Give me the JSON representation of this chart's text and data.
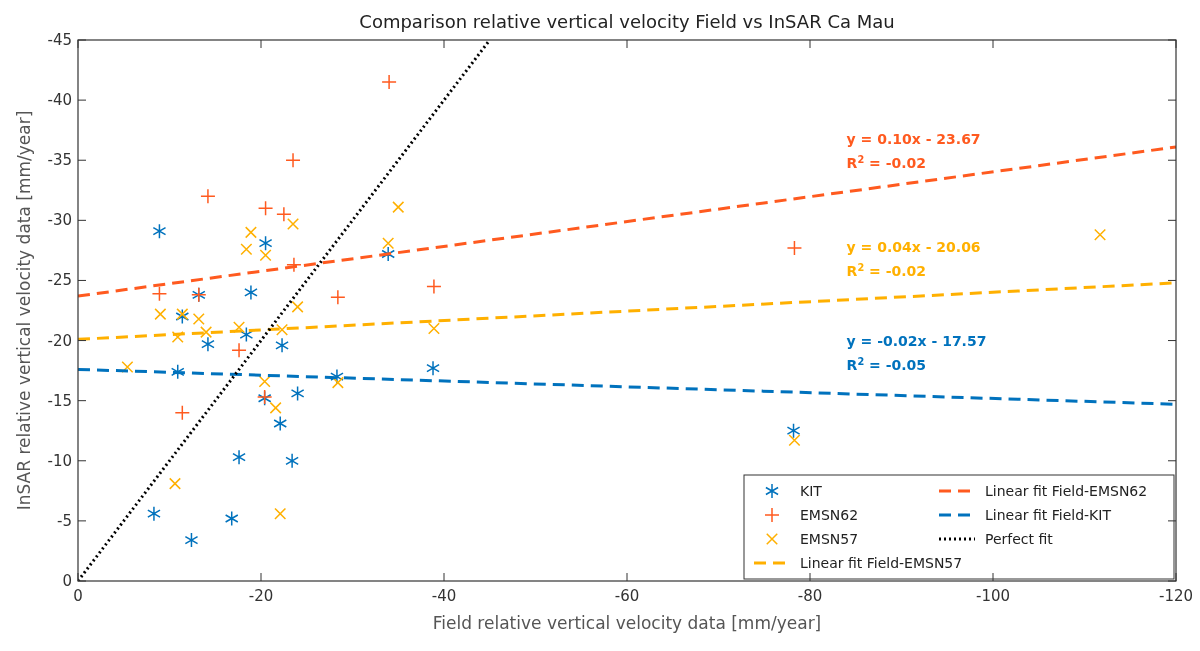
{
  "chart_data": {
    "type": "scatter",
    "title": "Comparison relative vertical velocity Field vs InSAR Ca Mau",
    "xlabel": "Field relative vertical velocity data [mm/year]",
    "ylabel": "InSAR relative vertical velocity data [mm/year]",
    "xlim": [
      0,
      -120
    ],
    "xticks": [
      0,
      -20,
      -40,
      -60,
      -80,
      -100,
      -120
    ],
    "ylim": [
      0,
      -45
    ],
    "yticks": [
      0,
      -5,
      -10,
      -15,
      -20,
      -25,
      -30,
      -35,
      -40,
      -45
    ],
    "grid": false,
    "legend": "bottom right",
    "series": [
      {
        "name": "KIT",
        "color": "#0072bd",
        "x": [
          -11.4,
          -14.2,
          -18.4,
          -22.3,
          -10.9,
          -28.3,
          -38.8,
          -20.4,
          -24,
          -22.1,
          -17.6,
          -23.4,
          -8.3,
          -16.8,
          -12.4,
          -8.9,
          -20.5,
          -33.9,
          -18.9,
          -13.2,
          -78.2
        ],
        "values": [
          -22.0,
          -19.7,
          -20.5,
          -19.6,
          -17.4,
          -17.0,
          -17.7,
          -15.2,
          -15.6,
          -13.1,
          -10.3,
          -10.0,
          -5.6,
          -5.2,
          -3.4,
          -29.1,
          -28.1,
          -27.2,
          -24.0,
          -23.8,
          -12.5
        ]
      },
      {
        "name": "EMSN62",
        "color": "#ff5a1f",
        "marker": "cross",
        "x": [
          -34.0,
          -23.5,
          -14.2,
          -20.5,
          -22.5,
          -23.6,
          -8.9,
          -13.2,
          -28.4,
          -38.9,
          -78.3,
          -17.6,
          -20.4,
          -11.4
        ],
        "values": [
          -41.5,
          -35.0,
          -32.0,
          -31.0,
          -30.5,
          -26.3,
          -23.9,
          -23.8,
          -23.6,
          -24.5,
          -27.7,
          -19.2,
          -15.3,
          -14.0
        ]
      },
      {
        "name": "EMSN57",
        "color": "#ffb000",
        "marker": "x",
        "x": [
          -35,
          -23.5,
          -18.9,
          -33.9,
          -18.4,
          -20.5,
          -9.0,
          -13.2,
          -11.4,
          -24.0,
          -10.9,
          -14.0,
          -17.6,
          -22.3,
          -38.9,
          -5.4,
          -20.4,
          -28.4,
          -21.6,
          -10.6,
          -22.1,
          -78.3,
          -111.7
        ],
        "values": [
          -31.1,
          -29.7,
          -29.0,
          -28.1,
          -27.6,
          -27.1,
          -22.2,
          -21.8,
          -22.2,
          -22.8,
          -20.3,
          -20.7,
          -21.1,
          -20.9,
          -21.0,
          -17.8,
          -16.6,
          -16.5,
          -14.4,
          -8.1,
          -5.6,
          -11.7,
          -28.8
        ]
      },
      {
        "name": "Linear fit Field-EMSN57",
        "type": "line",
        "color": "#ffb000",
        "line_style": "dashed",
        "marker": "none",
        "x": [
          0,
          -120
        ],
        "values": [
          -20.1,
          -24.8
        ]
      },
      {
        "name": "Linear fit Field-EMSN62",
        "type": "line",
        "color": "#ff5a1f",
        "line_style": "dashed",
        "marker": "none",
        "x": [
          0,
          -120
        ],
        "values": [
          -23.7,
          -36.1
        ]
      },
      {
        "name": "Linear fit Field-KIT",
        "type": "line",
        "color": "#0072bd",
        "line_style": "dashed",
        "marker": "none",
        "x": [
          0,
          -120
        ],
        "values": [
          -17.6,
          -14.7
        ]
      },
      {
        "name": "Perfect fit",
        "type": "line",
        "color": "#000000",
        "line_style": "dotted",
        "marker": "none",
        "x": [
          0,
          -45
        ],
        "values": [
          0,
          -45
        ]
      }
    ],
    "annotations": [
      "y = 0.04x - 20.06",
      "R$^{2}$ = -0.02",
      "y = 0.10x - 23.67",
      "R$^{2}$ = -0.02",
      "y = -0.02x - 17.57",
      "R$^{2}$ = -0.05"
    ]
  }
}
